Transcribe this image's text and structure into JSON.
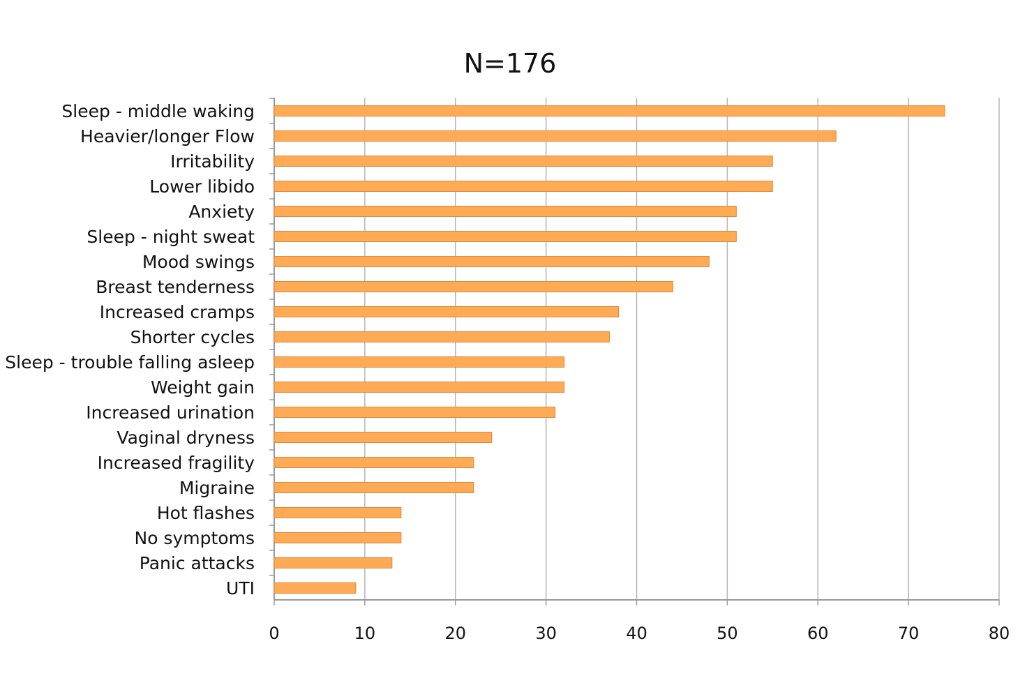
{
  "chart_data": {
    "type": "bar",
    "orientation": "horizontal",
    "title": "N=176",
    "xlabel": "",
    "ylabel": "",
    "categories": [
      "Sleep - middle waking",
      "Heavier/longer Flow",
      "Irritability",
      "Lower libido",
      "Anxiety",
      "Sleep - night sweat",
      "Mood swings",
      "Breast tenderness",
      "Increased cramps",
      "Shorter cycles",
      "Sleep - trouble falling asleep",
      "Weight gain",
      "Increased urination",
      "Vaginal dryness",
      "Increased fragility",
      "Migraine",
      "Hot flashes",
      "No symptoms",
      "Panic attacks",
      "UTI"
    ],
    "values": [
      74,
      62,
      55,
      55,
      51,
      51,
      48,
      44,
      38,
      37,
      32,
      32,
      31,
      24,
      22,
      22,
      14,
      14,
      13,
      9
    ],
    "xlim": [
      0,
      80
    ],
    "xticks": [
      0,
      10,
      20,
      30,
      40,
      50,
      60,
      70,
      80
    ],
    "xtick_labels": [
      "0",
      "10",
      "20",
      "30",
      "40",
      "50",
      "60",
      "70",
      "80"
    ],
    "grid": "vertical",
    "legend": "none",
    "bar_color": "#FFAA55",
    "bar_stroke_color": "#E0883A",
    "grid_color": "#B5B5B5",
    "axis_color": "#9A9A9A"
  }
}
